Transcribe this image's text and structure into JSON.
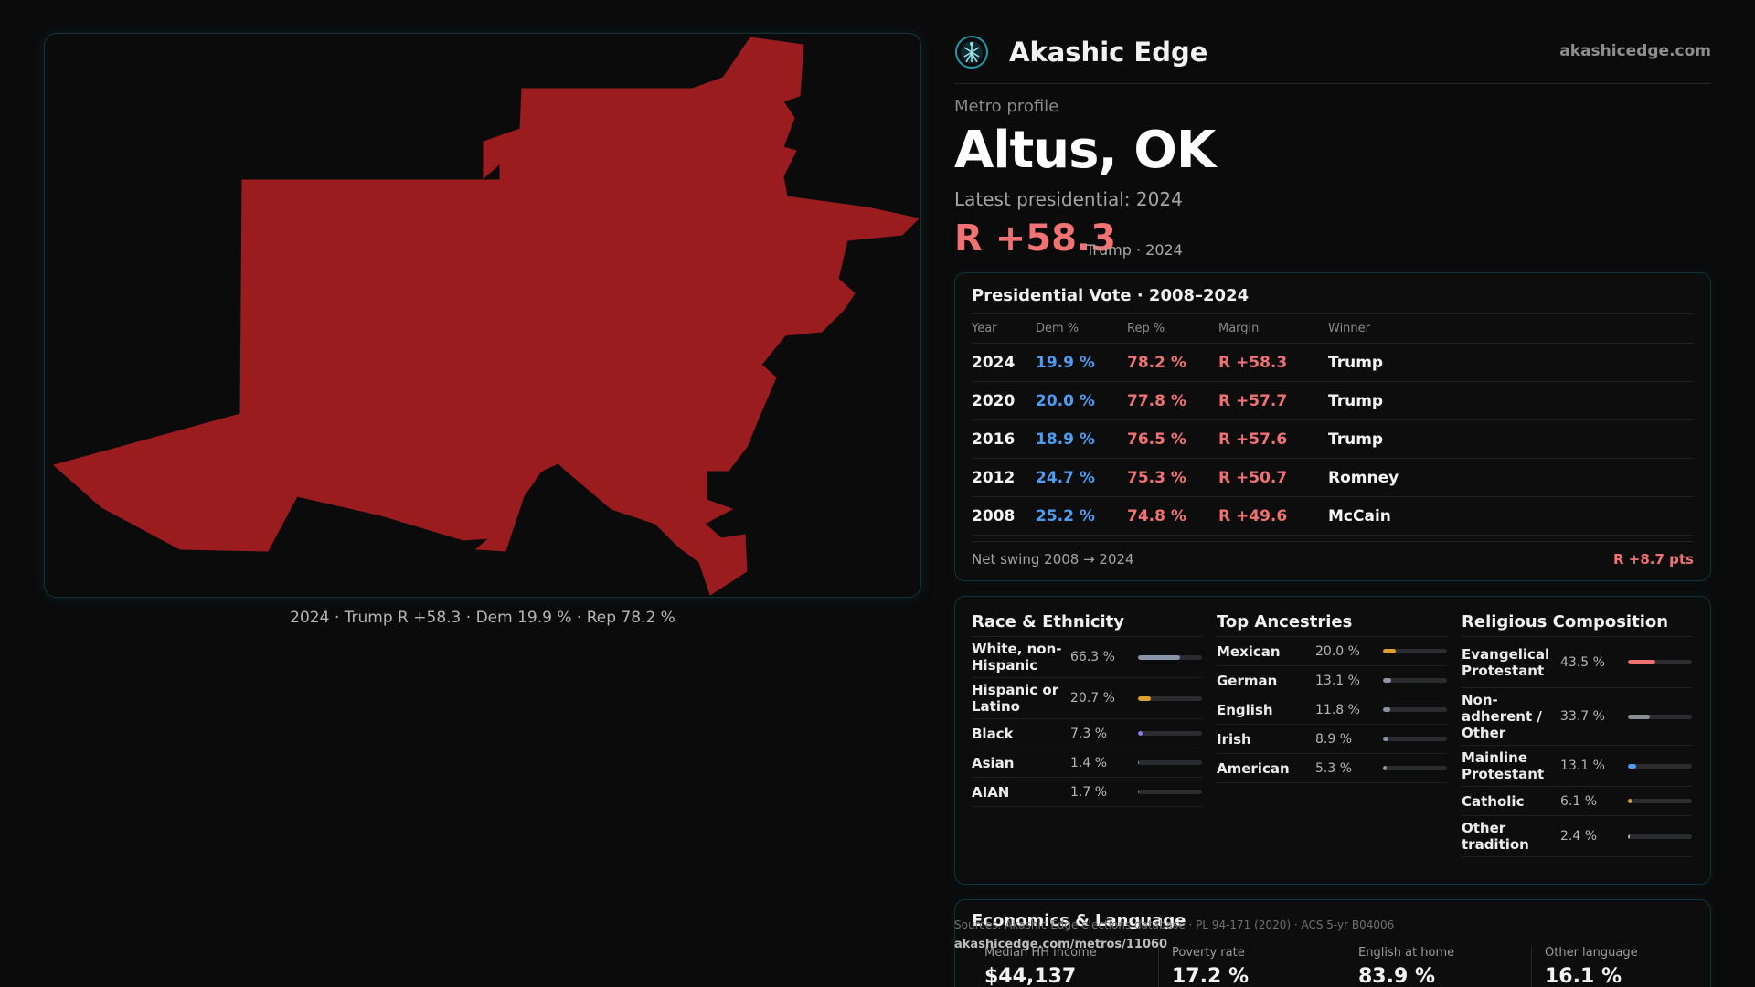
{
  "brand": {
    "name": "Akashic Edge",
    "url": "akashicedge.com",
    "accent": "#1b9aaa"
  },
  "map": {
    "fill_color": "#9b1c1f",
    "caption": "2024 · Trump R +58.3 · Dem 19.9 % · Rep 78.2 %"
  },
  "profile": {
    "kicker": "Metro profile",
    "title": "Altus, OK",
    "latest_label": "Latest presidential: 2024",
    "margin": "R +58.3",
    "margin_sub": "Trump · 2024"
  },
  "presidential": {
    "title": "Presidential Vote · 2008–2024",
    "headers": {
      "year": "Year",
      "dem": "Dem %",
      "rep": "Rep %",
      "margin": "Margin",
      "winner": "Winner"
    },
    "rows": [
      {
        "year": "2024",
        "dem": "19.9 %",
        "rep": "78.2 %",
        "margin": "R +58.3",
        "winner": "Trump"
      },
      {
        "year": "2020",
        "dem": "20.0 %",
        "rep": "77.8 %",
        "margin": "R +57.7",
        "winner": "Trump"
      },
      {
        "year": "2016",
        "dem": "18.9 %",
        "rep": "76.5 %",
        "margin": "R +57.6",
        "winner": "Trump"
      },
      {
        "year": "2012",
        "dem": "24.7 %",
        "rep": "75.3 %",
        "margin": "R +50.7",
        "winner": "Romney"
      },
      {
        "year": "2008",
        "dem": "25.2 %",
        "rep": "74.8 %",
        "margin": "R +49.6",
        "winner": "McCain"
      }
    ],
    "net_swing_label": "Net swing 2008 → 2024",
    "net_swing_value": "R +8.7 pts",
    "colors": {
      "dem": "#4f9cf0",
      "rep": "#f07272"
    }
  },
  "demographics": {
    "race": {
      "title": "Race & Ethnicity",
      "rows": [
        {
          "label": "White, non-Hispanic",
          "value": "66.3 %",
          "pct": 66.3,
          "color": "#8a96a8"
        },
        {
          "label": "Hispanic or Latino",
          "value": "20.7 %",
          "pct": 20.7,
          "color": "#e0a030"
        },
        {
          "label": "Black",
          "value": "7.3 %",
          "pct": 7.3,
          "color": "#8a7cf0"
        },
        {
          "label": "Asian",
          "value": "1.4 %",
          "pct": 1.4,
          "color": "#3fbf7f"
        },
        {
          "label": "AIAN",
          "value": "1.7 %",
          "pct": 1.7,
          "color": "#c0803a"
        }
      ]
    },
    "ancestry": {
      "title": "Top Ancestries",
      "rows": [
        {
          "label": "Mexican",
          "value": "20.0 %",
          "pct": 20.0,
          "color": "#e0a030"
        },
        {
          "label": "German",
          "value": "13.1 %",
          "pct": 13.1,
          "color": "#8a96a8"
        },
        {
          "label": "English",
          "value": "11.8 %",
          "pct": 11.8,
          "color": "#8a96a8"
        },
        {
          "label": "Irish",
          "value": "8.9 %",
          "pct": 8.9,
          "color": "#8a96a8"
        },
        {
          "label": "American",
          "value": "5.3 %",
          "pct": 5.3,
          "color": "#8a96a8"
        }
      ]
    },
    "religion": {
      "title": "Religious Composition",
      "rows": [
        {
          "label": "Evangelical Protestant",
          "value": "43.5 %",
          "pct": 43.5,
          "color": "#f07272"
        },
        {
          "label": "Non-adherent / Other",
          "value": "33.7 %",
          "pct": 33.7,
          "color": "#8a8f96"
        },
        {
          "label": "Mainline Protestant",
          "value": "13.1 %",
          "pct": 13.1,
          "color": "#4f9cf0"
        },
        {
          "label": "Catholic",
          "value": "6.1 %",
          "pct": 6.1,
          "color": "#e0a030"
        },
        {
          "label": "Other tradition",
          "value": "2.4 %",
          "pct": 2.4,
          "color": "#b0b0b0"
        }
      ]
    }
  },
  "economics": {
    "title": "Economics & Language",
    "cells": [
      {
        "label": "Median HH income",
        "value": "$44,137"
      },
      {
        "label": "Poverty rate",
        "value": "17.2 %"
      },
      {
        "label": "English at home",
        "value": "83.9 %"
      },
      {
        "label": "Other language",
        "value": "16.1 %"
      }
    ]
  },
  "footer": {
    "sources": "Sources: Akashic Edge elections database · PL 94-171 (2020) · ACS 5-yr B04006",
    "url": "akashicedge.com/metros/11060"
  }
}
